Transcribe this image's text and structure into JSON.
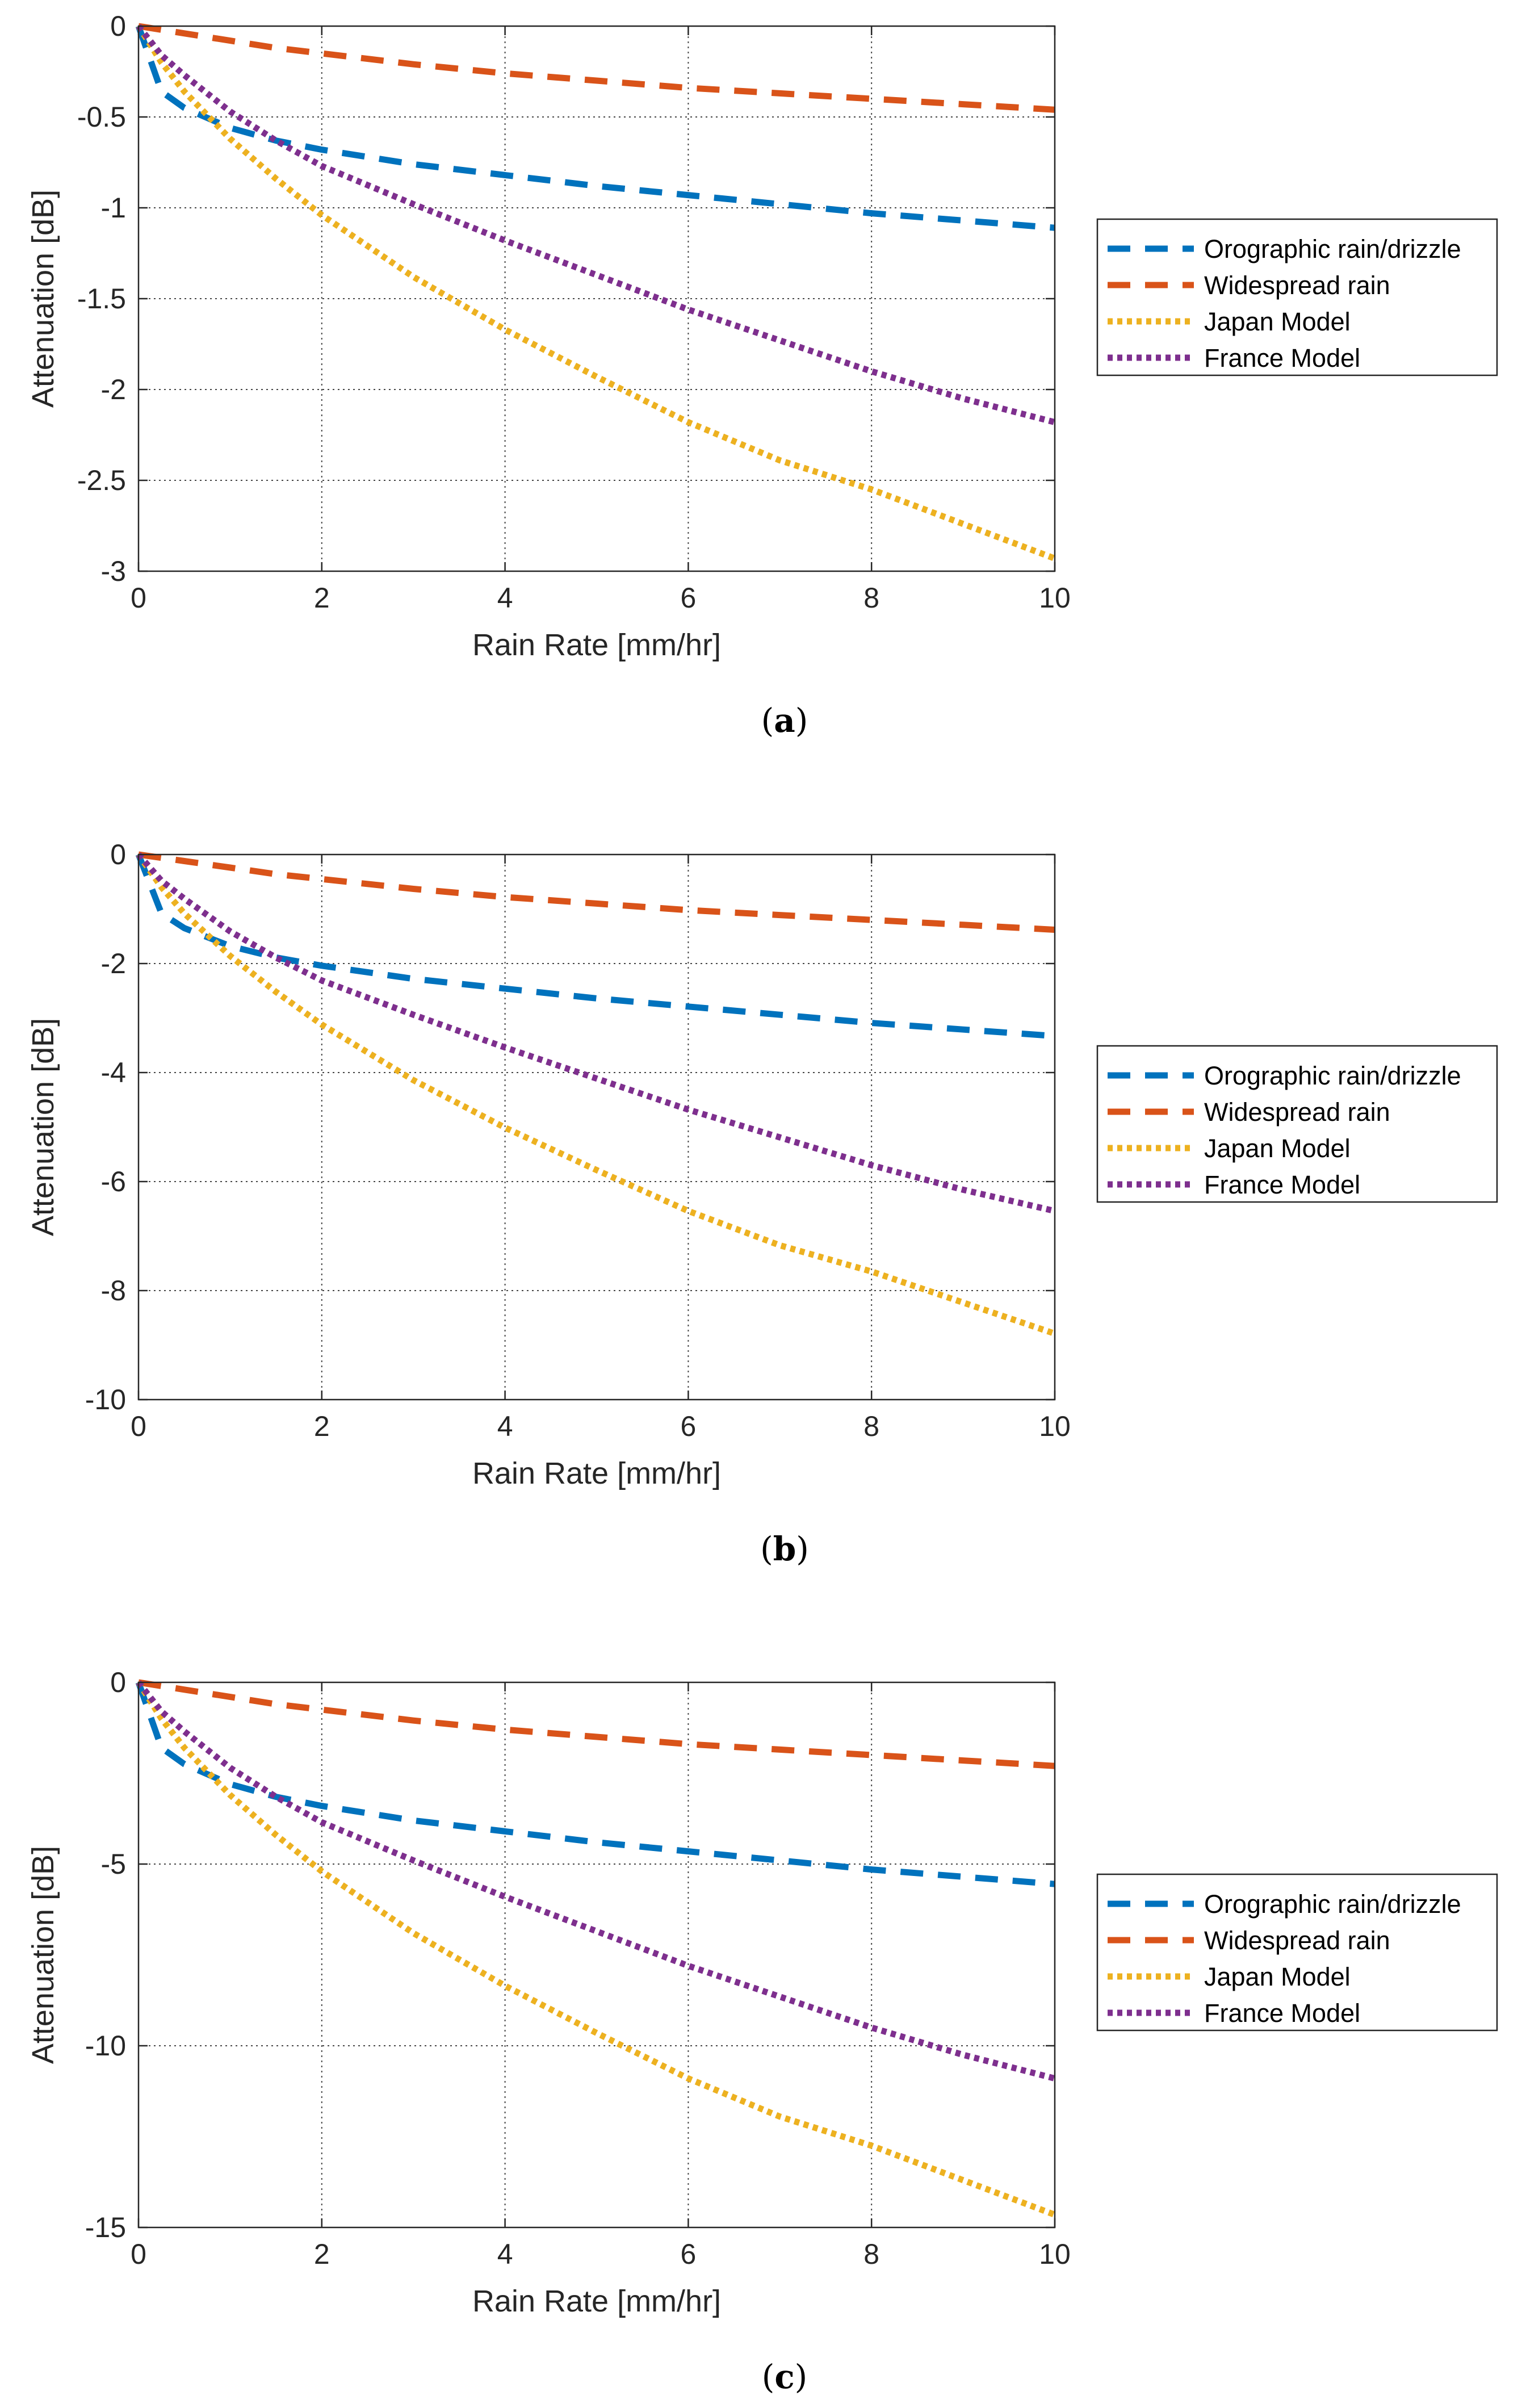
{
  "chart_data": [
    {
      "type": "line",
      "caption": "(a)",
      "caption_label": "a",
      "xlabel": "Rain Rate [mm/hr]",
      "ylabel": "Attenuation [dB]",
      "xlim": [
        0,
        10
      ],
      "ylim": [
        -3,
        0
      ],
      "xticks": [
        0,
        2,
        4,
        6,
        8,
        10
      ],
      "yticks": [
        0,
        -0.5,
        -1,
        -1.5,
        -2,
        -2.5,
        -3
      ],
      "ytick_labels": [
        "0",
        "-0.5",
        "-1",
        "-1.5",
        "-2",
        "-2.5",
        "-3"
      ],
      "grid": true,
      "legend": "outside-right",
      "x": [
        0,
        0.25,
        0.5,
        1,
        1.5,
        2,
        3,
        4,
        5,
        6,
        7,
        8,
        9,
        10
      ],
      "series": [
        {
          "name": "Orographic rain/drizzle",
          "color": "#0072BD",
          "style": "dashed",
          "values": [
            0,
            -0.36,
            -0.45,
            -0.56,
            -0.63,
            -0.68,
            -0.76,
            -0.82,
            -0.88,
            -0.93,
            -0.98,
            -1.03,
            -1.07,
            -1.11
          ]
        },
        {
          "name": "Widespread rain",
          "color": "#D95319",
          "style": "dashed",
          "values": [
            0,
            -0.02,
            -0.04,
            -0.08,
            -0.12,
            -0.15,
            -0.21,
            -0.26,
            -0.3,
            -0.34,
            -0.37,
            -0.4,
            -0.43,
            -0.46
          ]
        },
        {
          "name": "Japan Model",
          "color": "#EDB120",
          "style": "dotted",
          "values": [
            0,
            -0.2,
            -0.36,
            -0.62,
            -0.84,
            -1.04,
            -1.38,
            -1.67,
            -1.93,
            -2.18,
            -2.39,
            -2.55,
            -2.74,
            -2.93
          ]
        },
        {
          "name": "France Model",
          "color": "#7E2F8E",
          "style": "dotted",
          "values": [
            0,
            -0.16,
            -0.27,
            -0.47,
            -0.63,
            -0.77,
            -0.98,
            -1.18,
            -1.37,
            -1.56,
            -1.73,
            -1.9,
            -2.05,
            -2.18
          ]
        }
      ]
    },
    {
      "type": "line",
      "caption": "(b)",
      "caption_label": "b",
      "xlabel": "Rain Rate [mm/hr]",
      "ylabel": "Attenuation [dB]",
      "xlim": [
        0,
        10
      ],
      "ylim": [
        -10,
        0
      ],
      "xticks": [
        0,
        2,
        4,
        6,
        8,
        10
      ],
      "yticks": [
        0,
        -2,
        -4,
        -6,
        -8,
        -10
      ],
      "ytick_labels": [
        "0",
        "-2",
        "-4",
        "-6",
        "-8",
        "-10"
      ],
      "grid": true,
      "legend": "outside-right",
      "x": [
        0,
        0.25,
        0.5,
        1,
        1.5,
        2,
        3,
        4,
        5,
        6,
        7,
        8,
        9,
        10
      ],
      "series": [
        {
          "name": "Orographic rain/drizzle",
          "color": "#0072BD",
          "style": "dashed",
          "values": [
            0,
            -1.08,
            -1.35,
            -1.68,
            -1.89,
            -2.04,
            -2.28,
            -2.46,
            -2.64,
            -2.79,
            -2.94,
            -3.09,
            -3.21,
            -3.33
          ]
        },
        {
          "name": "Widespread rain",
          "color": "#D95319",
          "style": "dashed",
          "values": [
            0,
            -0.06,
            -0.12,
            -0.24,
            -0.36,
            -0.45,
            -0.63,
            -0.78,
            -0.9,
            -1.02,
            -1.11,
            -1.2,
            -1.29,
            -1.38
          ]
        },
        {
          "name": "Japan Model",
          "color": "#EDB120",
          "style": "dotted",
          "values": [
            0,
            -0.6,
            -1.08,
            -1.86,
            -2.52,
            -3.12,
            -4.14,
            -5.01,
            -5.79,
            -6.54,
            -7.17,
            -7.65,
            -8.22,
            -8.79
          ]
        },
        {
          "name": "France Model",
          "color": "#7E2F8E",
          "style": "dotted",
          "values": [
            0,
            -0.48,
            -0.81,
            -1.41,
            -1.89,
            -2.31,
            -2.94,
            -3.54,
            -4.11,
            -4.68,
            -5.19,
            -5.7,
            -6.15,
            -6.54
          ]
        }
      ]
    },
    {
      "type": "line",
      "caption": "(c)",
      "caption_label": "c",
      "xlabel": "Rain Rate [mm/hr]",
      "ylabel": "Attenuation [dB]",
      "xlim": [
        0,
        10
      ],
      "ylim": [
        -15,
        0
      ],
      "xticks": [
        0,
        2,
        4,
        6,
        8,
        10
      ],
      "yticks": [
        0,
        -5,
        -10,
        -15
      ],
      "ytick_labels": [
        "0",
        "-5",
        "-10",
        "-15"
      ],
      "grid": true,
      "legend": "outside-right",
      "x": [
        0,
        0.25,
        0.5,
        1,
        1.5,
        2,
        3,
        4,
        5,
        6,
        7,
        8,
        9,
        10
      ],
      "series": [
        {
          "name": "Orographic rain/drizzle",
          "color": "#0072BD",
          "style": "dashed",
          "values": [
            0,
            -1.8,
            -2.25,
            -2.8,
            -3.15,
            -3.4,
            -3.8,
            -4.1,
            -4.4,
            -4.65,
            -4.9,
            -5.15,
            -5.35,
            -5.55
          ]
        },
        {
          "name": "Widespread rain",
          "color": "#D95319",
          "style": "dashed",
          "values": [
            0,
            -0.1,
            -0.2,
            -0.4,
            -0.6,
            -0.75,
            -1.05,
            -1.3,
            -1.5,
            -1.7,
            -1.85,
            -2.0,
            -2.15,
            -2.3
          ]
        },
        {
          "name": "Japan Model",
          "color": "#EDB120",
          "style": "dotted",
          "values": [
            0,
            -1.0,
            -1.8,
            -3.1,
            -4.2,
            -5.2,
            -6.9,
            -8.35,
            -9.65,
            -10.9,
            -11.95,
            -12.75,
            -13.7,
            -14.65
          ]
        },
        {
          "name": "France Model",
          "color": "#7E2F8E",
          "style": "dotted",
          "values": [
            0,
            -0.8,
            -1.35,
            -2.35,
            -3.15,
            -3.85,
            -4.9,
            -5.9,
            -6.85,
            -7.8,
            -8.65,
            -9.5,
            -10.25,
            -10.9
          ]
        }
      ]
    }
  ]
}
